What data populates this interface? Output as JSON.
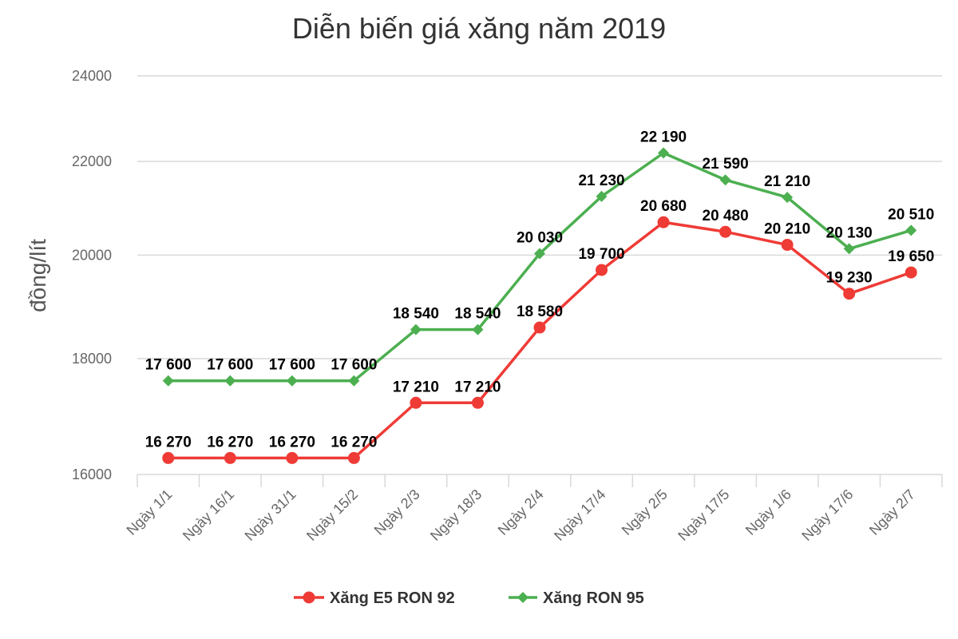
{
  "chart_data": {
    "type": "line",
    "title": "Diễn biến giá xăng năm 2019",
    "xlabel": "",
    "ylabel": "đồng/lít",
    "ylim": [
      16000,
      24000
    ],
    "yticks": [
      "16000",
      "18000",
      "20000",
      "22000",
      "24000"
    ],
    "y_scale": "log",
    "grid": true,
    "legend_position": "bottom",
    "categories": [
      "Ngày 1/1",
      "Ngày 16/1",
      "Ngày 31/1",
      "Ngày 15/2",
      "Ngày 2/3",
      "Ngày 18/3",
      "Ngày 2/4",
      "Ngày 17/4",
      "Ngày 2/5",
      "Ngày 17/5",
      "Ngày 1/6",
      "Ngày 17/6",
      "Ngày 2/7"
    ],
    "series": [
      {
        "name": "Xăng E5 RON 92",
        "color": "#ef3b36",
        "marker": "circle",
        "values": [
          16270,
          16270,
          16270,
          16270,
          17210,
          17210,
          18580,
          19700,
          20680,
          20480,
          20210,
          19230,
          19650
        ],
        "labels": [
          "16 270",
          "16 270",
          "16 270",
          "16 270",
          "17 210",
          "17 210",
          "18 580",
          "19 700",
          "20 680",
          "20 480",
          "20 210",
          "19 230",
          "19 650"
        ]
      },
      {
        "name": "Xăng RON 95",
        "color": "#4caf50",
        "marker": "diamond",
        "values": [
          17600,
          17600,
          17600,
          17600,
          18540,
          18540,
          20030,
          21230,
          22190,
          21590,
          21210,
          20130,
          20510
        ],
        "labels": [
          "17 600",
          "17 600",
          "17 600",
          "17 600",
          "18 540",
          "18 540",
          "20 030",
          "21 230",
          "22 190",
          "21 590",
          "21 210",
          "20 130",
          "20 510"
        ]
      }
    ]
  }
}
